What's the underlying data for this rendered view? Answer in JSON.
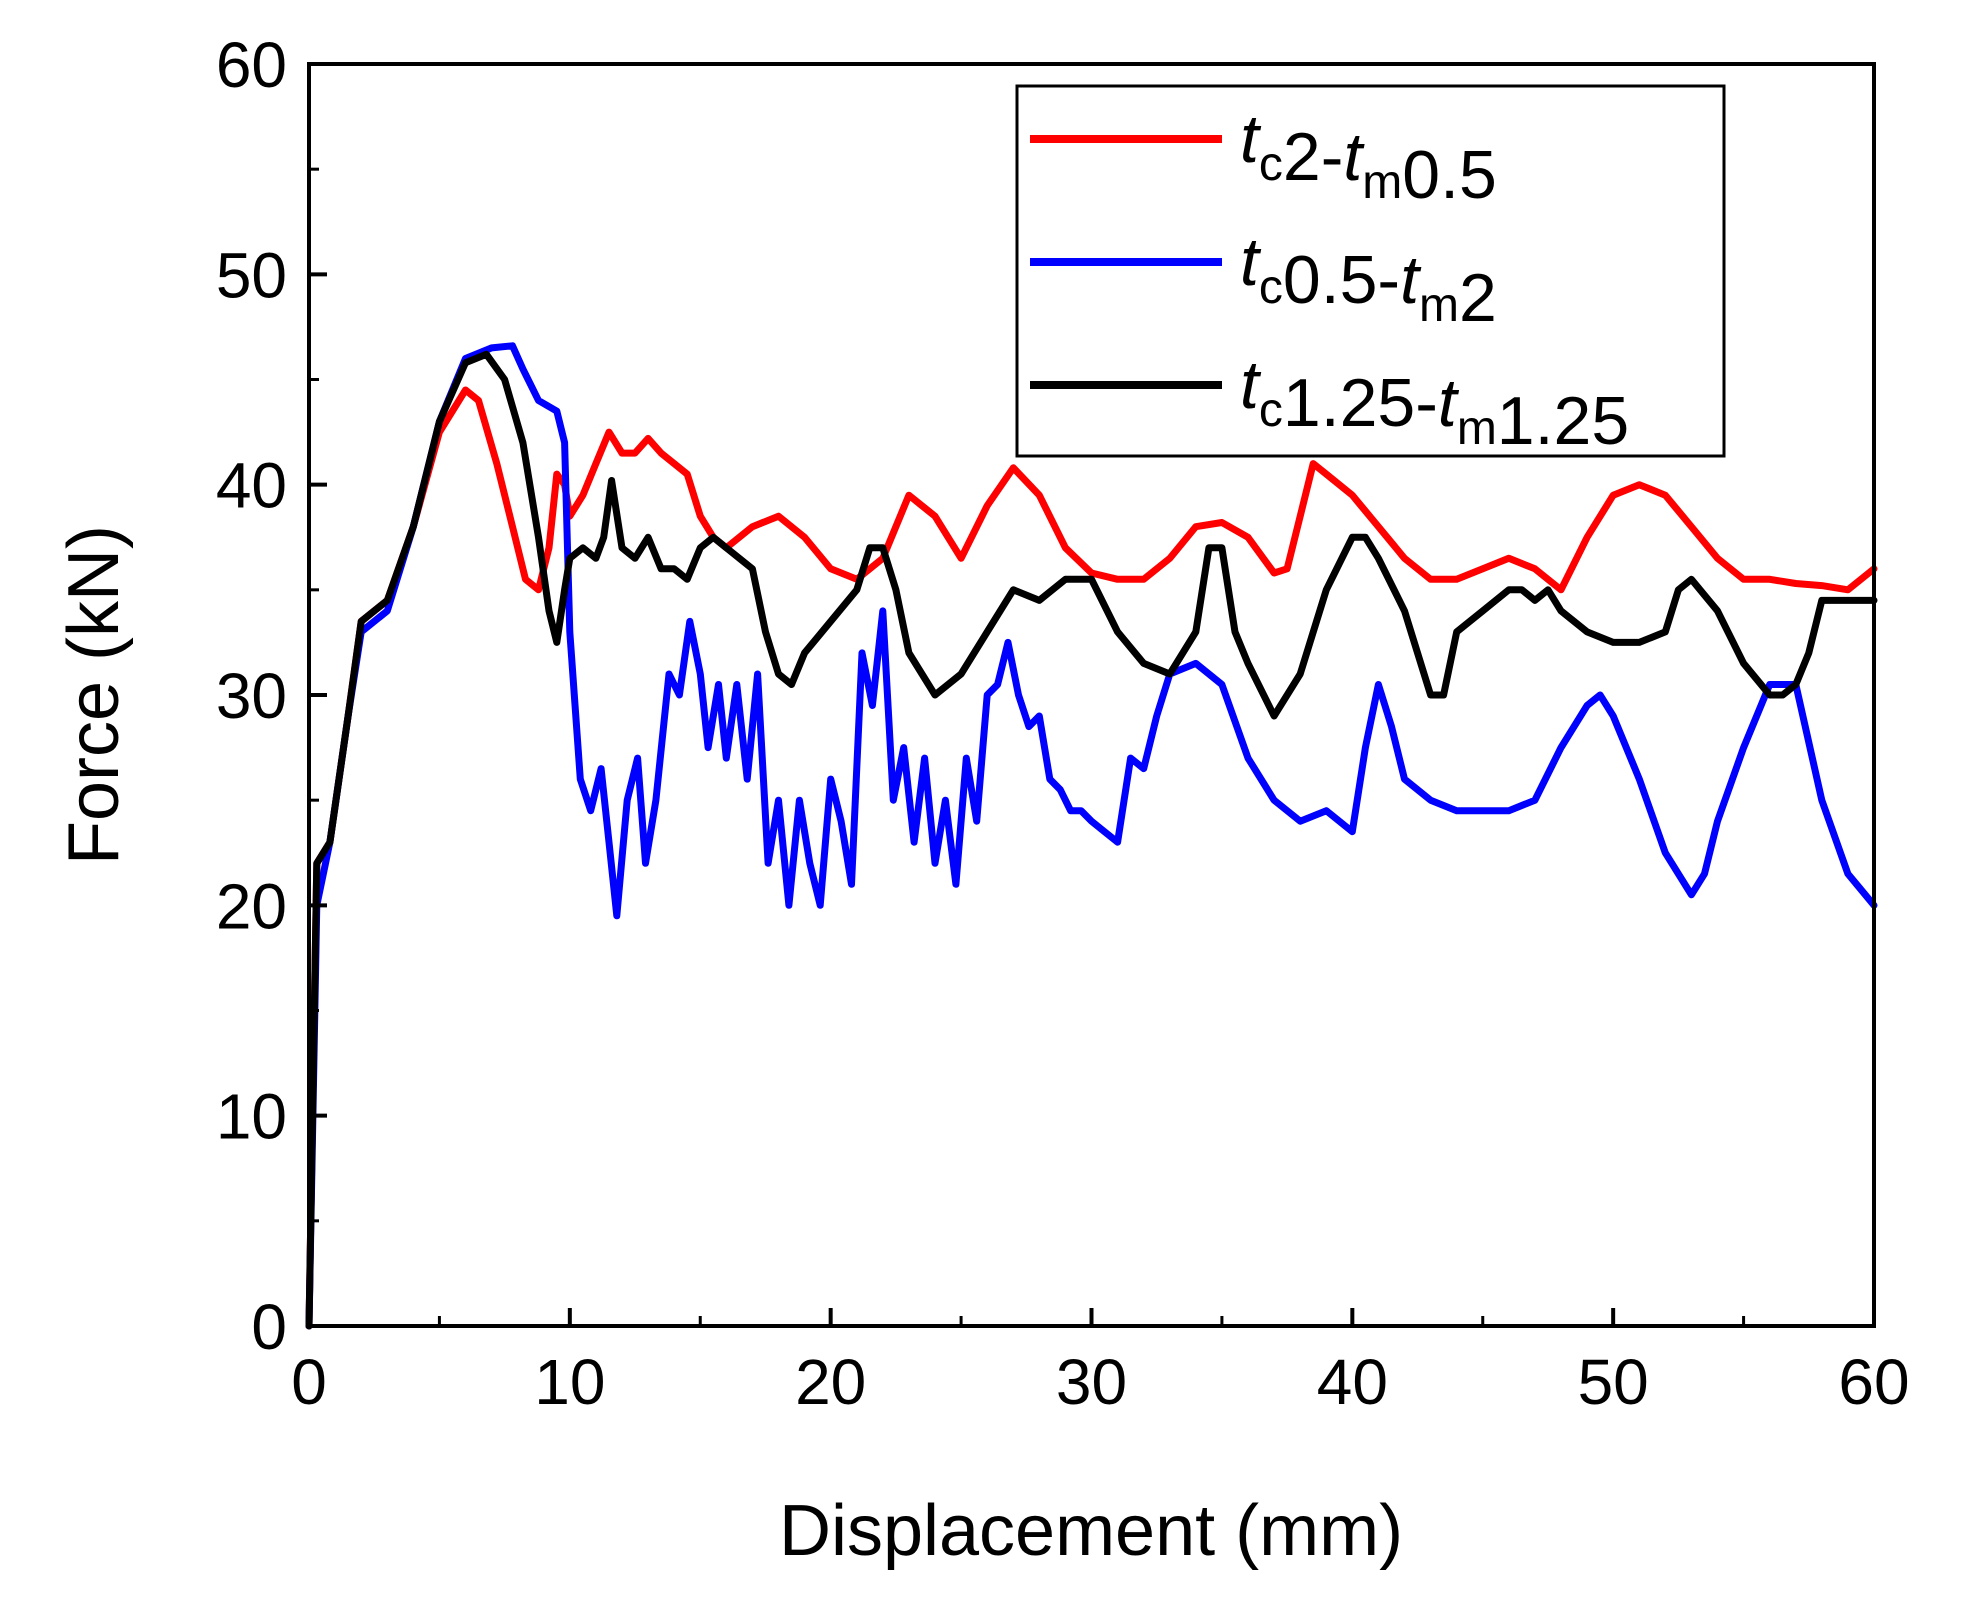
{
  "chart_data": {
    "type": "line",
    "title": "",
    "xlabel": "Displacement (mm)",
    "ylabel": "Force (kN)",
    "xlim": [
      0,
      60
    ],
    "ylim": [
      0,
      60
    ],
    "xticks": [
      0,
      10,
      20,
      30,
      40,
      50,
      60
    ],
    "yticks": [
      0,
      10,
      20,
      30,
      40,
      50,
      60
    ],
    "xtick_labels": [
      "0",
      "10",
      "20",
      "30",
      "40",
      "50",
      "60"
    ],
    "ytick_labels": [
      "0",
      "10",
      "20",
      "30",
      "40",
      "50",
      "60"
    ],
    "grid": false,
    "legend_position": "top-right",
    "series": [
      {
        "name": "tc2-tm0.5",
        "label_parts": [
          {
            "text": "t",
            "italic": true
          },
          {
            "text": "c",
            "sub": true
          },
          {
            "text": "2-"
          },
          {
            "text": "t",
            "italic": true
          },
          {
            "text": "m",
            "sub": true
          },
          {
            "text": "0.5"
          }
        ],
        "color": "#ff0000",
        "points": [
          [
            0,
            0
          ],
          [
            0.3,
            22
          ],
          [
            0.8,
            23
          ],
          [
            1.5,
            29
          ],
          [
            2,
            33.5
          ],
          [
            3,
            34.5
          ],
          [
            4,
            38
          ],
          [
            5,
            42.5
          ],
          [
            6,
            44.5
          ],
          [
            6.5,
            44
          ],
          [
            7.2,
            41
          ],
          [
            7.8,
            38
          ],
          [
            8.3,
            35.5
          ],
          [
            8.8,
            35
          ],
          [
            9.2,
            37
          ],
          [
            9.5,
            40.5
          ],
          [
            9.8,
            40
          ],
          [
            10,
            38.5
          ],
          [
            10.5,
            39.5
          ],
          [
            11,
            41
          ],
          [
            11.5,
            42.5
          ],
          [
            12,
            41.5
          ],
          [
            12.5,
            41.5
          ],
          [
            13,
            42.2
          ],
          [
            13.5,
            41.5
          ],
          [
            14,
            41
          ],
          [
            14.5,
            40.5
          ],
          [
            15,
            38.5
          ],
          [
            15.5,
            37.5
          ],
          [
            16,
            37
          ],
          [
            17,
            38
          ],
          [
            18,
            38.5
          ],
          [
            19,
            37.5
          ],
          [
            20,
            36
          ],
          [
            21,
            35.5
          ],
          [
            22,
            36.5
          ],
          [
            23,
            39.5
          ],
          [
            24,
            38.5
          ],
          [
            25,
            36.5
          ],
          [
            26,
            39
          ],
          [
            27,
            40.8
          ],
          [
            28,
            39.5
          ],
          [
            29,
            37
          ],
          [
            30,
            35.8
          ],
          [
            31,
            35.5
          ],
          [
            32,
            35.5
          ],
          [
            33,
            36.5
          ],
          [
            34,
            38
          ],
          [
            35,
            38.2
          ],
          [
            36,
            37.5
          ],
          [
            37,
            35.8
          ],
          [
            37.5,
            36
          ],
          [
            38,
            38.5
          ],
          [
            38.5,
            41
          ],
          [
            39,
            40.5
          ],
          [
            40,
            39.5
          ],
          [
            41,
            38
          ],
          [
            42,
            36.5
          ],
          [
            43,
            35.5
          ],
          [
            44,
            35.5
          ],
          [
            45,
            36
          ],
          [
            46,
            36.5
          ],
          [
            47,
            36
          ],
          [
            48,
            35
          ],
          [
            49,
            37.5
          ],
          [
            50,
            39.5
          ],
          [
            51,
            40
          ],
          [
            52,
            39.5
          ],
          [
            53,
            38
          ],
          [
            54,
            36.5
          ],
          [
            55,
            35.5
          ],
          [
            56,
            35.5
          ],
          [
            57,
            35.3
          ],
          [
            58,
            35.2
          ],
          [
            59,
            35
          ],
          [
            60,
            36
          ]
        ]
      },
      {
        "name": "tc0.5-tm2",
        "label_parts": [
          {
            "text": "t",
            "italic": true
          },
          {
            "text": "c",
            "sub": true
          },
          {
            "text": "0.5-"
          },
          {
            "text": "t",
            "italic": true
          },
          {
            "text": "m",
            "sub": true
          },
          {
            "text": "2"
          }
        ],
        "color": "#0000ff",
        "points": [
          [
            0,
            0
          ],
          [
            0.3,
            20
          ],
          [
            0.8,
            23
          ],
          [
            1.5,
            29
          ],
          [
            2,
            33
          ],
          [
            3,
            34
          ],
          [
            4,
            38
          ],
          [
            5,
            43
          ],
          [
            6,
            46
          ],
          [
            7,
            46.5
          ],
          [
            7.8,
            46.6
          ],
          [
            8.2,
            45.5
          ],
          [
            8.8,
            44
          ],
          [
            9.5,
            43.5
          ],
          [
            9.8,
            42
          ],
          [
            10,
            33
          ],
          [
            10.4,
            26
          ],
          [
            10.8,
            24.5
          ],
          [
            11.2,
            26.5
          ],
          [
            11.5,
            23
          ],
          [
            11.8,
            19.5
          ],
          [
            12.2,
            25
          ],
          [
            12.6,
            27
          ],
          [
            12.9,
            22
          ],
          [
            13.3,
            25
          ],
          [
            13.8,
            31
          ],
          [
            14.2,
            30
          ],
          [
            14.6,
            33.5
          ],
          [
            15,
            31
          ],
          [
            15.3,
            27.5
          ],
          [
            15.7,
            30.5
          ],
          [
            16,
            27
          ],
          [
            16.4,
            30.5
          ],
          [
            16.8,
            26
          ],
          [
            17.2,
            31
          ],
          [
            17.6,
            22
          ],
          [
            18,
            25
          ],
          [
            18.4,
            20
          ],
          [
            18.8,
            25
          ],
          [
            19.2,
            22
          ],
          [
            19.6,
            20
          ],
          [
            20,
            26
          ],
          [
            20.4,
            24
          ],
          [
            20.8,
            21
          ],
          [
            21.2,
            32
          ],
          [
            21.6,
            29.5
          ],
          [
            22,
            34
          ],
          [
            22.4,
            25
          ],
          [
            22.8,
            27.5
          ],
          [
            23.2,
            23
          ],
          [
            23.6,
            27
          ],
          [
            24,
            22
          ],
          [
            24.4,
            25
          ],
          [
            24.8,
            21
          ],
          [
            25.2,
            27
          ],
          [
            25.6,
            24
          ],
          [
            26,
            30
          ],
          [
            26.4,
            30.5
          ],
          [
            26.8,
            32.5
          ],
          [
            27.2,
            30
          ],
          [
            27.6,
            28.5
          ],
          [
            28,
            29
          ],
          [
            28.4,
            26
          ],
          [
            28.8,
            25.5
          ],
          [
            29.2,
            24.5
          ],
          [
            29.6,
            24.5
          ],
          [
            30,
            24
          ],
          [
            30.5,
            23.5
          ],
          [
            31,
            23
          ],
          [
            31.5,
            27
          ],
          [
            32,
            26.5
          ],
          [
            32.5,
            29
          ],
          [
            33,
            31
          ],
          [
            34,
            31.5
          ],
          [
            35,
            30.5
          ],
          [
            36,
            27
          ],
          [
            37,
            25
          ],
          [
            38,
            24
          ],
          [
            39,
            24.5
          ],
          [
            40,
            23.5
          ],
          [
            40.5,
            27.5
          ],
          [
            41,
            30.5
          ],
          [
            41.5,
            28.5
          ],
          [
            42,
            26
          ],
          [
            43,
            25
          ],
          [
            44,
            24.5
          ],
          [
            45,
            24.5
          ],
          [
            46,
            24.5
          ],
          [
            47,
            25
          ],
          [
            48,
            27.5
          ],
          [
            49,
            29.5
          ],
          [
            49.5,
            30
          ],
          [
            50,
            29
          ],
          [
            51,
            26
          ],
          [
            52,
            22.5
          ],
          [
            53,
            20.5
          ],
          [
            53.5,
            21.5
          ],
          [
            54,
            24
          ],
          [
            55,
            27.5
          ],
          [
            56,
            30.5
          ],
          [
            57,
            30.5
          ],
          [
            58,
            25
          ],
          [
            59,
            21.5
          ],
          [
            60,
            20
          ]
        ]
      },
      {
        "name": "tc1.25-tm1.25",
        "label_parts": [
          {
            "text": "t",
            "italic": true
          },
          {
            "text": "c",
            "sub": true
          },
          {
            "text": "1.25-"
          },
          {
            "text": "t",
            "italic": true
          },
          {
            "text": "m",
            "sub": true
          },
          {
            "text": "1.25"
          }
        ],
        "color": "#000000",
        "points": [
          [
            0,
            0
          ],
          [
            0.3,
            22
          ],
          [
            0.8,
            23
          ],
          [
            1.5,
            29
          ],
          [
            2,
            33.5
          ],
          [
            3,
            34.5
          ],
          [
            4,
            38
          ],
          [
            5,
            43
          ],
          [
            6,
            45.8
          ],
          [
            6.8,
            46.2
          ],
          [
            7.5,
            45
          ],
          [
            8.2,
            42
          ],
          [
            8.8,
            37.5
          ],
          [
            9.2,
            34
          ],
          [
            9.5,
            32.5
          ],
          [
            9.8,
            35
          ],
          [
            10,
            36.5
          ],
          [
            10.5,
            37
          ],
          [
            11,
            36.5
          ],
          [
            11.3,
            37.5
          ],
          [
            11.6,
            40.2
          ],
          [
            12,
            37
          ],
          [
            12.5,
            36.5
          ],
          [
            13,
            37.5
          ],
          [
            13.5,
            36
          ],
          [
            14,
            36
          ],
          [
            14.5,
            35.5
          ],
          [
            15,
            37
          ],
          [
            15.5,
            37.5
          ],
          [
            16,
            37
          ],
          [
            17,
            36
          ],
          [
            17.5,
            33
          ],
          [
            18,
            31
          ],
          [
            18.5,
            30.5
          ],
          [
            19,
            32
          ],
          [
            20,
            33.5
          ],
          [
            21,
            35
          ],
          [
            21.5,
            37
          ],
          [
            22,
            37
          ],
          [
            22.5,
            35
          ],
          [
            23,
            32
          ],
          [
            24,
            30
          ],
          [
            25,
            31
          ],
          [
            26,
            33
          ],
          [
            27,
            35
          ],
          [
            28,
            34.5
          ],
          [
            29,
            35.5
          ],
          [
            30,
            35.5
          ],
          [
            31,
            33
          ],
          [
            32,
            31.5
          ],
          [
            33,
            31
          ],
          [
            34,
            33
          ],
          [
            34.5,
            37
          ],
          [
            35,
            37
          ],
          [
            35.5,
            33
          ],
          [
            36,
            31.5
          ],
          [
            37,
            29
          ],
          [
            38,
            31
          ],
          [
            39,
            35
          ],
          [
            40,
            37.5
          ],
          [
            40.5,
            37.5
          ],
          [
            41,
            36.5
          ],
          [
            42,
            34
          ],
          [
            43,
            30
          ],
          [
            43.5,
            30
          ],
          [
            44,
            33
          ],
          [
            45,
            34
          ],
          [
            46,
            35
          ],
          [
            46.5,
            35
          ],
          [
            47,
            34.5
          ],
          [
            47.5,
            35
          ],
          [
            48,
            34
          ],
          [
            49,
            33
          ],
          [
            50,
            32.5
          ],
          [
            51,
            32.5
          ],
          [
            52,
            33
          ],
          [
            52.5,
            35
          ],
          [
            53,
            35.5
          ],
          [
            54,
            34
          ],
          [
            55,
            31.5
          ],
          [
            56,
            30
          ],
          [
            56.5,
            30
          ],
          [
            57,
            30.5
          ],
          [
            57.5,
            32
          ],
          [
            58,
            34.5
          ],
          [
            59,
            34.5
          ],
          [
            60,
            34.5
          ]
        ]
      }
    ]
  }
}
